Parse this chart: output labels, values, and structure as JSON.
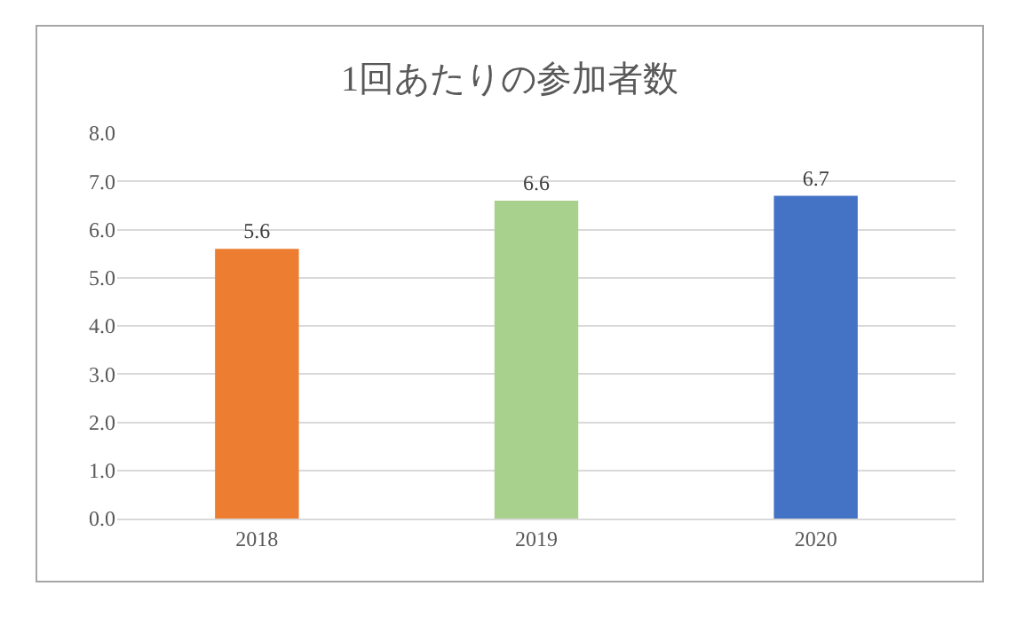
{
  "chart_data": {
    "type": "bar",
    "title": "1回あたりの参加者数",
    "categories": [
      "2018",
      "2019",
      "2020"
    ],
    "values": [
      5.6,
      6.6,
      6.7
    ],
    "colors": [
      "#ed7d31",
      "#a9d18e",
      "#4472c4"
    ],
    "ylim": [
      0,
      8
    ],
    "yticks": [
      {
        "value": 0,
        "label": "0.0"
      },
      {
        "value": 1,
        "label": "1.0"
      },
      {
        "value": 2,
        "label": "2.0"
      },
      {
        "value": 3,
        "label": "3.0"
      },
      {
        "value": 4,
        "label": "4.0"
      },
      {
        "value": 5,
        "label": "5.0"
      },
      {
        "value": 6,
        "label": "6.0"
      },
      {
        "value": 7,
        "label": "7.0"
      },
      {
        "value": 8,
        "label": "8.0"
      }
    ],
    "grid": "y",
    "data_labels": true,
    "legend": false
  }
}
